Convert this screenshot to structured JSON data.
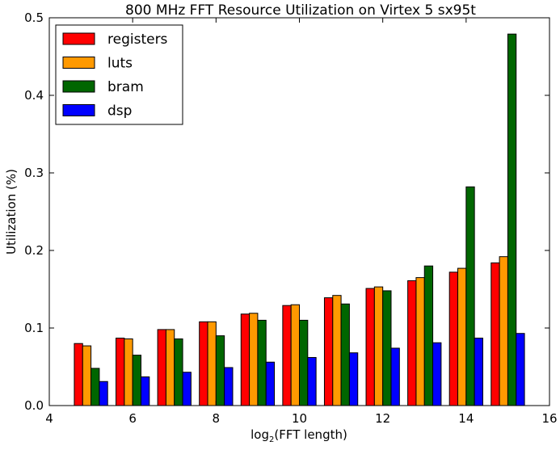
{
  "chart_data": {
    "type": "bar",
    "title": "800 MHz FFT Resource Utilization on Virtex 5 sx95t",
    "xlabel_main": "log",
    "xlabel_sub": "2",
    "xlabel_tail": "(FFT length)",
    "ylabel": "Utilization (%)",
    "xlim": [
      4,
      16
    ],
    "ylim": [
      0,
      0.5
    ],
    "xticks": [
      "4",
      "6",
      "8",
      "10",
      "12",
      "14",
      "16"
    ],
    "yticks": [
      "0.0",
      "0.1",
      "0.2",
      "0.3",
      "0.4",
      "0.5"
    ],
    "grid": false,
    "legend_position": "top-left",
    "x": [
      5,
      6,
      7,
      8,
      9,
      10,
      11,
      12,
      13,
      14,
      15
    ],
    "series": [
      {
        "name": "registers",
        "color": "#ff0000",
        "values": [
          0.08,
          0.087,
          0.098,
          0.108,
          0.118,
          0.129,
          0.139,
          0.151,
          0.161,
          0.172,
          0.184
        ]
      },
      {
        "name": "luts",
        "color": "#ff9900",
        "values": [
          0.077,
          0.086,
          0.098,
          0.108,
          0.119,
          0.13,
          0.142,
          0.153,
          0.165,
          0.177,
          0.192
        ]
      },
      {
        "name": "bram",
        "color": "#006600",
        "values": [
          0.048,
          0.065,
          0.086,
          0.09,
          0.11,
          0.11,
          0.131,
          0.148,
          0.18,
          0.282,
          0.479
        ]
      },
      {
        "name": "dsp",
        "color": "#0000ff",
        "values": [
          0.031,
          0.037,
          0.043,
          0.049,
          0.056,
          0.062,
          0.068,
          0.074,
          0.081,
          0.087,
          0.093
        ]
      }
    ]
  }
}
